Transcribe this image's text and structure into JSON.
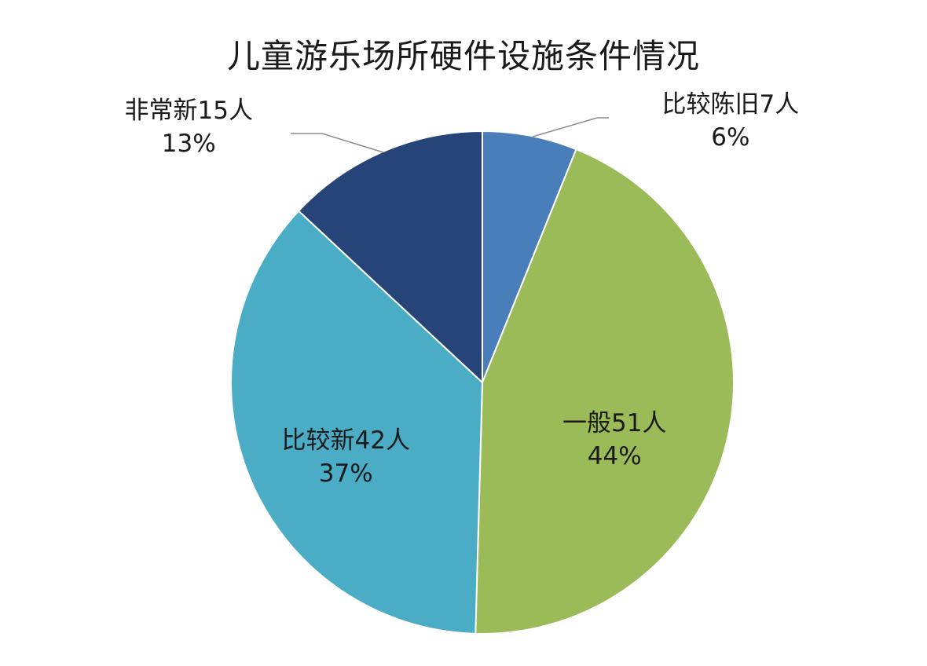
{
  "chart_data": {
    "type": "pie",
    "title": "儿童游乐场所硬件设施条件情况",
    "unit": "人",
    "slices": [
      {
        "name": "比较陈旧",
        "value": 7,
        "percent": 6,
        "label": "比较陈旧7人",
        "percent_label": "6%",
        "color": "#4a7ebb"
      },
      {
        "name": "一般",
        "value": 51,
        "percent": 44,
        "label": "一般51人",
        "percent_label": "44%",
        "color": "#9bbb59"
      },
      {
        "name": "比较新",
        "value": 42,
        "percent": 37,
        "label": "比较新42人",
        "percent_label": "37%",
        "color": "#4bacc6"
      },
      {
        "name": "非常新",
        "value": 15,
        "percent": 13,
        "label": "非常新15人",
        "percent_label": "13%",
        "color": "#264478"
      }
    ],
    "start_angle": "12 o'clock",
    "direction": "clockwise",
    "legend": "none"
  }
}
